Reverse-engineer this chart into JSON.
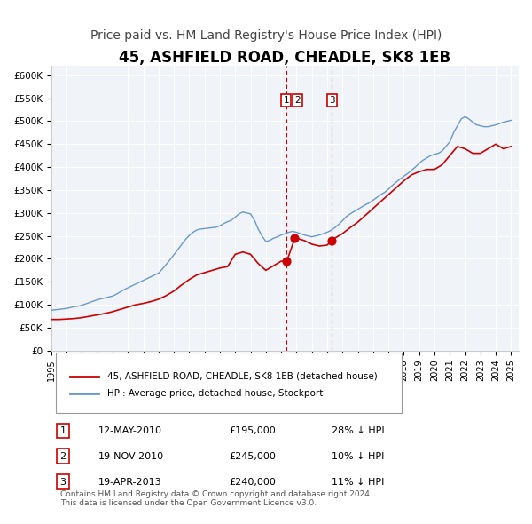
{
  "title": "45, ASHFIELD ROAD, CHEADLE, SK8 1EB",
  "subtitle": "Price paid vs. HM Land Registry's House Price Index (HPI)",
  "title_fontsize": 12,
  "subtitle_fontsize": 10,
  "xlim": [
    1995.0,
    2025.5
  ],
  "ylim": [
    0,
    620000
  ],
  "yticks": [
    0,
    50000,
    100000,
    150000,
    200000,
    250000,
    300000,
    350000,
    400000,
    450000,
    500000,
    550000,
    600000
  ],
  "ytick_labels": [
    "£0",
    "£50K",
    "£100K",
    "£150K",
    "£200K",
    "£250K",
    "£300K",
    "£350K",
    "£400K",
    "£450K",
    "£500K",
    "£550K",
    "£600K"
  ],
  "xtick_years": [
    1995,
    1996,
    1997,
    1998,
    1999,
    2000,
    2001,
    2002,
    2003,
    2004,
    2005,
    2006,
    2007,
    2008,
    2009,
    2010,
    2011,
    2012,
    2013,
    2014,
    2015,
    2016,
    2017,
    2018,
    2019,
    2020,
    2021,
    2022,
    2023,
    2024,
    2025
  ],
  "red_color": "#cc0000",
  "blue_color": "#6699cc",
  "bg_color": "#f0f4f8",
  "grid_color": "#ffffff",
  "legend_label_red": "45, ASHFIELD ROAD, CHEADLE, SK8 1EB (detached house)",
  "legend_label_blue": "HPI: Average price, detached house, Stockport",
  "transactions": [
    {
      "num": 1,
      "date": "12-MAY-2010",
      "price": "£195,000",
      "pct": "28% ↓ HPI",
      "x": 2010.37
    },
    {
      "num": 2,
      "date": "19-NOV-2010",
      "price": "£245,000",
      "pct": "10% ↓ HPI",
      "x": 2010.89
    },
    {
      "num": 3,
      "date": "19-APR-2013",
      "price": "£240,000",
      "pct": "11% ↓ HPI",
      "x": 2013.3
    }
  ],
  "transaction_values": [
    195000,
    245000,
    240000
  ],
  "footer": "Contains HM Land Registry data © Crown copyright and database right 2024.\nThis data is licensed under the Open Government Licence v3.0.",
  "hpi_data_x": [
    1995.0,
    1995.25,
    1995.5,
    1995.75,
    1996.0,
    1996.25,
    1996.5,
    1996.75,
    1997.0,
    1997.25,
    1997.5,
    1997.75,
    1998.0,
    1998.25,
    1998.5,
    1998.75,
    1999.0,
    1999.25,
    1999.5,
    1999.75,
    2000.0,
    2000.25,
    2000.5,
    2000.75,
    2001.0,
    2001.25,
    2001.5,
    2001.75,
    2002.0,
    2002.25,
    2002.5,
    2002.75,
    2003.0,
    2003.25,
    2003.5,
    2003.75,
    2004.0,
    2004.25,
    2004.5,
    2004.75,
    2005.0,
    2005.25,
    2005.5,
    2005.75,
    2006.0,
    2006.25,
    2006.5,
    2006.75,
    2007.0,
    2007.25,
    2007.5,
    2007.75,
    2008.0,
    2008.25,
    2008.5,
    2008.75,
    2009.0,
    2009.25,
    2009.5,
    2009.75,
    2010.0,
    2010.25,
    2010.5,
    2010.75,
    2011.0,
    2011.25,
    2011.5,
    2011.75,
    2012.0,
    2012.25,
    2012.5,
    2012.75,
    2013.0,
    2013.25,
    2013.5,
    2013.75,
    2014.0,
    2014.25,
    2014.5,
    2014.75,
    2015.0,
    2015.25,
    2015.5,
    2015.75,
    2016.0,
    2016.25,
    2016.5,
    2016.75,
    2017.0,
    2017.25,
    2017.5,
    2017.75,
    2018.0,
    2018.25,
    2018.5,
    2018.75,
    2019.0,
    2019.25,
    2019.5,
    2019.75,
    2020.0,
    2020.25,
    2020.5,
    2020.75,
    2021.0,
    2021.25,
    2021.5,
    2021.75,
    2022.0,
    2022.25,
    2022.5,
    2022.75,
    2023.0,
    2023.25,
    2023.5,
    2023.75,
    2024.0,
    2024.25,
    2024.5,
    2024.75,
    2025.0
  ],
  "hpi_data_y": [
    88000,
    89000,
    90000,
    91000,
    92000,
    94000,
    96000,
    97000,
    99000,
    102000,
    105000,
    108000,
    111000,
    113000,
    115000,
    117000,
    119000,
    123000,
    128000,
    133000,
    137000,
    141000,
    145000,
    149000,
    153000,
    157000,
    161000,
    165000,
    169000,
    178000,
    188000,
    198000,
    209000,
    220000,
    231000,
    242000,
    251000,
    258000,
    263000,
    265000,
    266000,
    267000,
    268000,
    269000,
    272000,
    277000,
    281000,
    284000,
    291000,
    298000,
    302000,
    300000,
    298000,
    285000,
    265000,
    250000,
    238000,
    240000,
    245000,
    248000,
    252000,
    255000,
    258000,
    260000,
    258000,
    255000,
    252000,
    250000,
    248000,
    250000,
    252000,
    255000,
    258000,
    262000,
    268000,
    275000,
    283000,
    292000,
    298000,
    303000,
    308000,
    313000,
    318000,
    322000,
    328000,
    334000,
    340000,
    345000,
    352000,
    360000,
    367000,
    374000,
    380000,
    386000,
    393000,
    400000,
    408000,
    415000,
    420000,
    425000,
    428000,
    430000,
    435000,
    445000,
    455000,
    475000,
    490000,
    505000,
    510000,
    505000,
    498000,
    492000,
    490000,
    488000,
    488000,
    490000,
    492000,
    495000,
    498000,
    500000,
    502000
  ],
  "red_data_x": [
    1995.0,
    1995.5,
    1996.0,
    1996.5,
    1997.0,
    1997.5,
    1998.0,
    1998.5,
    1999.0,
    1999.5,
    2000.0,
    2000.5,
    2001.0,
    2001.5,
    2002.0,
    2002.5,
    2003.0,
    2003.5,
    2004.0,
    2004.5,
    2005.0,
    2005.5,
    2006.0,
    2006.5,
    2007.0,
    2007.5,
    2008.0,
    2008.5,
    2009.0,
    2009.5,
    2010.0,
    2010.37,
    2010.89,
    2011.0,
    2011.5,
    2012.0,
    2012.5,
    2013.0,
    2013.3,
    2013.5,
    2014.0,
    2014.5,
    2015.0,
    2015.5,
    2016.0,
    2016.5,
    2017.0,
    2017.5,
    2018.0,
    2018.5,
    2019.0,
    2019.5,
    2020.0,
    2020.5,
    2021.0,
    2021.5,
    2022.0,
    2022.5,
    2023.0,
    2023.5,
    2024.0,
    2024.5,
    2025.0
  ],
  "red_data_y": [
    68000,
    68000,
    69000,
    70000,
    72000,
    75000,
    78000,
    81000,
    85000,
    90000,
    95000,
    100000,
    103000,
    107000,
    112000,
    120000,
    130000,
    143000,
    155000,
    165000,
    170000,
    175000,
    180000,
    183000,
    210000,
    215000,
    210000,
    190000,
    175000,
    185000,
    195000,
    195000,
    245000,
    245000,
    240000,
    232000,
    228000,
    230000,
    240000,
    245000,
    255000,
    268000,
    280000,
    295000,
    310000,
    325000,
    340000,
    355000,
    370000,
    383000,
    390000,
    395000,
    395000,
    405000,
    425000,
    445000,
    440000,
    430000,
    430000,
    440000,
    450000,
    440000,
    445000
  ]
}
